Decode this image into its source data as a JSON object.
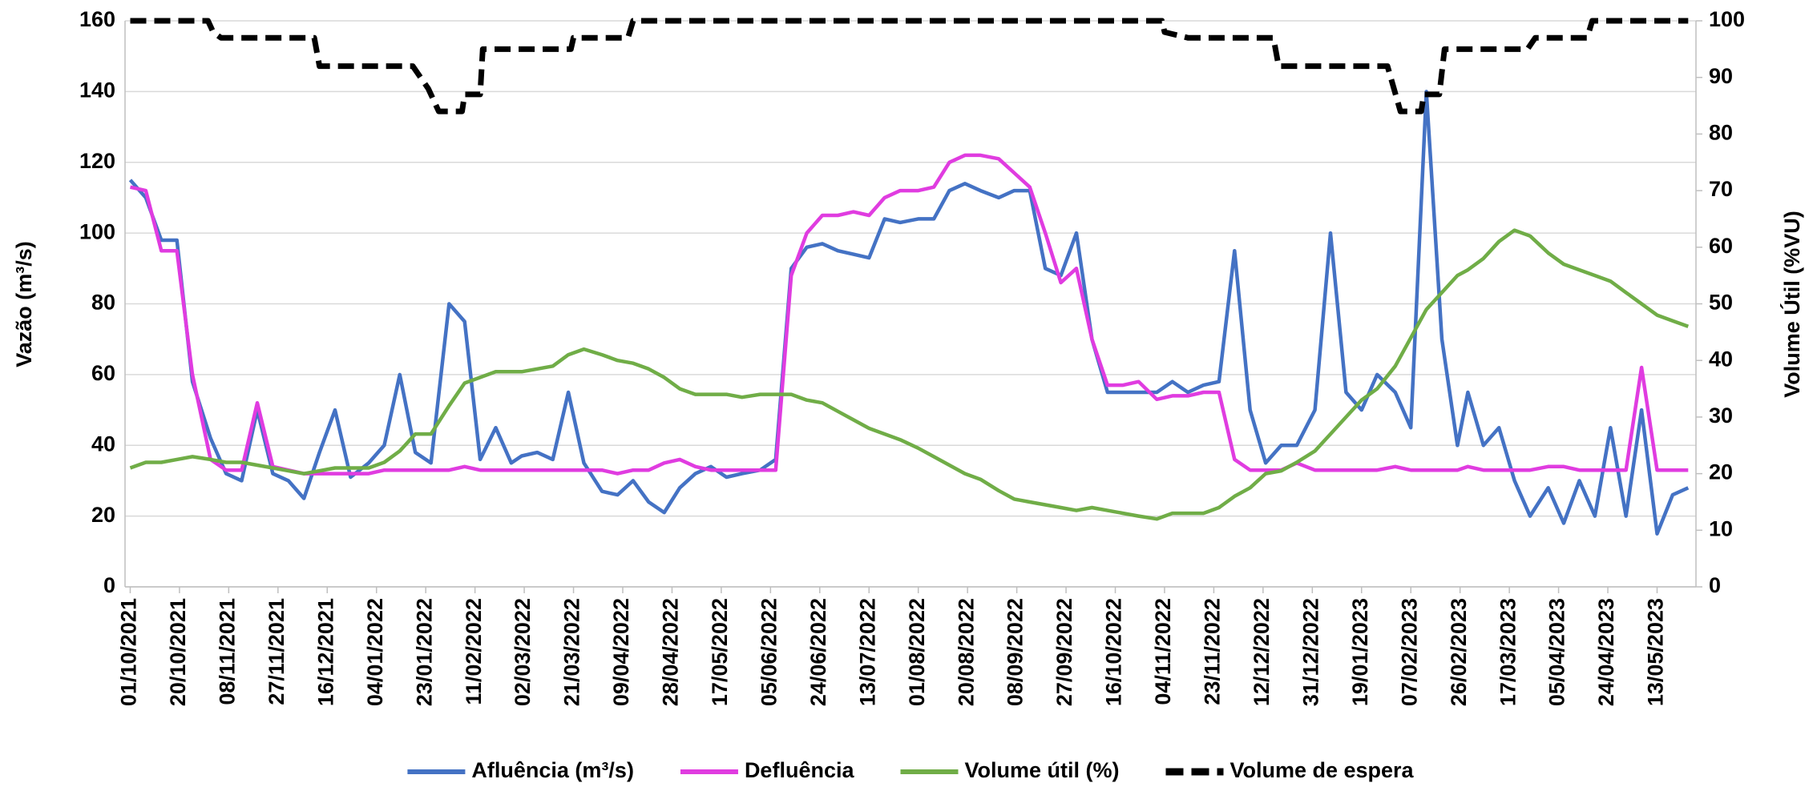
{
  "chart_data": {
    "type": "line",
    "y_label": "Vazão (m³/s)",
    "y2_label": "Volume Útil (%VU)",
    "xlim": [
      "29/09/2021",
      "28/05/2023"
    ],
    "xticks": [
      "01/10/2021",
      "20/10/2021",
      "08/11/2021",
      "27/11/2021",
      "16/12/2021",
      "04/01/2022",
      "23/01/2022",
      "11/02/2022",
      "02/03/2022",
      "21/03/2022",
      "09/04/2022",
      "28/04/2022",
      "17/05/2022",
      "05/06/2022",
      "24/06/2022",
      "13/07/2022",
      "01/08/2022",
      "20/08/2022",
      "08/09/2022",
      "27/09/2022",
      "16/10/2022",
      "04/11/2022",
      "23/11/2022",
      "12/12/2022",
      "31/12/2022",
      "19/01/2023",
      "07/02/2023",
      "26/02/2023",
      "17/03/2023",
      "05/04/2023",
      "24/04/2023",
      "13/05/2023"
    ],
    "ylim": [
      0,
      160
    ],
    "yticks": [
      0,
      20,
      40,
      60,
      80,
      100,
      120,
      140,
      160
    ],
    "y2lim": [
      0,
      100
    ],
    "y2ticks": [
      0,
      10,
      20,
      30,
      40,
      50,
      60,
      70,
      80,
      90,
      100
    ],
    "grid": true,
    "legend": "bottom",
    "x": [
      "01/10/2021",
      "07/10/2021",
      "13/10/2021",
      "19/10/2021",
      "25/10/2021",
      "01/11/2021",
      "07/11/2021",
      "13/11/2021",
      "19/11/2021",
      "25/11/2021",
      "01/12/2021",
      "07/12/2021",
      "13/12/2021",
      "19/12/2021",
      "25/12/2021",
      "01/01/2022",
      "07/01/2022",
      "13/01/2022",
      "19/01/2022",
      "25/01/2022",
      "01/02/2022",
      "07/02/2022",
      "13/02/2022",
      "19/02/2022",
      "25/02/2022",
      "01/03/2022",
      "07/03/2022",
      "13/03/2022",
      "19/03/2022",
      "25/03/2022",
      "01/04/2022",
      "07/04/2022",
      "13/04/2022",
      "19/04/2022",
      "25/04/2022",
      "01/05/2022",
      "07/05/2022",
      "13/05/2022",
      "19/05/2022",
      "25/05/2022",
      "01/06/2022",
      "07/06/2022",
      "13/06/2022",
      "19/06/2022",
      "25/06/2022",
      "01/07/2022",
      "07/07/2022",
      "13/07/2022",
      "19/07/2022",
      "25/07/2022",
      "01/08/2022",
      "07/08/2022",
      "13/08/2022",
      "19/08/2022",
      "25/08/2022",
      "01/09/2022",
      "07/09/2022",
      "13/09/2022",
      "19/09/2022",
      "25/09/2022",
      "01/10/2022",
      "07/10/2022",
      "13/10/2022",
      "19/10/2022",
      "25/10/2022",
      "01/11/2022",
      "07/11/2022",
      "13/11/2022",
      "19/11/2022",
      "25/11/2022",
      "01/12/2022",
      "07/12/2022",
      "13/12/2022",
      "19/12/2022",
      "25/12/2022",
      "01/01/2023",
      "07/01/2023",
      "13/01/2023",
      "19/01/2023",
      "25/01/2023",
      "01/02/2023",
      "07/02/2023",
      "13/02/2023",
      "19/02/2023",
      "25/02/2023",
      "01/03/2023",
      "07/03/2023",
      "13/03/2023",
      "19/03/2023",
      "25/03/2023",
      "01/04/2023",
      "07/04/2023",
      "13/04/2023",
      "19/04/2023",
      "25/04/2023",
      "01/05/2023",
      "07/05/2023",
      "13/05/2023",
      "19/05/2023",
      "25/05/2023"
    ],
    "series": [
      {
        "name": "Afluência (m³/s)",
        "color": "#4472c4",
        "values": [
          115,
          110,
          98,
          98,
          58,
          42,
          32,
          30,
          50,
          32,
          30,
          25,
          38,
          50,
          31,
          35,
          40,
          60,
          38,
          35,
          80,
          75,
          36,
          45,
          35,
          37,
          38,
          36,
          55,
          35,
          27,
          26,
          30,
          24,
          21,
          28,
          32,
          34,
          31,
          32,
          33,
          36,
          90,
          96,
          97,
          95,
          94,
          93,
          104,
          103,
          104,
          104,
          112,
          114,
          112,
          110,
          112,
          112,
          90,
          88,
          100,
          70,
          55,
          55,
          55,
          55,
          58,
          55,
          57,
          58,
          95,
          50,
          35,
          40,
          40,
          50,
          100,
          55,
          50,
          60,
          55,
          45,
          140,
          70,
          40,
          55,
          40,
          45,
          30,
          20,
          28,
          18,
          30,
          20,
          45,
          20,
          50,
          15,
          26,
          28
        ]
      },
      {
        "name": "Defluência",
        "color": "#e03ce0",
        "values": [
          113,
          112,
          95,
          95,
          60,
          36,
          33,
          33,
          52,
          34,
          33,
          32,
          32,
          32,
          32,
          32,
          33,
          33,
          33,
          33,
          33,
          34,
          33,
          33,
          33,
          33,
          33,
          33,
          33,
          33,
          33,
          32,
          33,
          33,
          35,
          36,
          34,
          33,
          33,
          33,
          33,
          33,
          88,
          100,
          105,
          105,
          106,
          105,
          110,
          112,
          112,
          113,
          120,
          122,
          122,
          121,
          117,
          113,
          100,
          86,
          90,
          70,
          57,
          57,
          58,
          53,
          54,
          54,
          55,
          55,
          36,
          33,
          33,
          33,
          35,
          33,
          33,
          33,
          33,
          33,
          34,
          33,
          33,
          33,
          33,
          34,
          33,
          33,
          33,
          33,
          34,
          34,
          33,
          33,
          33,
          33,
          62,
          33,
          33,
          33
        ]
      },
      {
        "name": "Volume útil (%)",
        "color": "#70ad47",
        "axis": "y2",
        "values": [
          21,
          22,
          22,
          22.5,
          23,
          22.5,
          22,
          22,
          21.5,
          21,
          20.5,
          20,
          20.5,
          21,
          21,
          21,
          22,
          24,
          27,
          27,
          32,
          36,
          37,
          38,
          38,
          38,
          38.5,
          39,
          41,
          42,
          41,
          40,
          39.5,
          38.5,
          37,
          35,
          34,
          34,
          34,
          33.5,
          34,
          34,
          34,
          33,
          32.5,
          31,
          29.5,
          28,
          27,
          26,
          24.5,
          23,
          21.5,
          20,
          19,
          17,
          15.5,
          15,
          14.5,
          14,
          13.5,
          14,
          13.5,
          13,
          12.5,
          12,
          13,
          13,
          13,
          14,
          16,
          17.5,
          20,
          20.5,
          22,
          24,
          27,
          30,
          33,
          35,
          39,
          44,
          49,
          52,
          55,
          56,
          58,
          61,
          63,
          62,
          59,
          57,
          56,
          55,
          54,
          52,
          50,
          48,
          47,
          46
        ]
      },
      {
        "name": "Volume de espera",
        "color": "#000000",
        "axis": "y2",
        "dashed": true,
        "x": [
          "01/10/2021",
          "31/10/2021",
          "02/11/2021",
          "05/11/2021",
          "11/12/2021",
          "13/12/2021",
          "18/01/2022",
          "24/01/2022",
          "28/01/2022",
          "06/02/2022",
          "07/02/2022",
          "13/02/2022",
          "14/02/2022",
          "20/03/2022",
          "21/03/2022",
          "11/04/2022",
          "13/04/2022",
          "03/11/2022",
          "04/11/2022",
          "13/11/2022",
          "16/12/2022",
          "18/12/2022",
          "29/01/2023",
          "03/02/2023",
          "11/02/2023",
          "12/02/2023",
          "18/02/2023",
          "20/02/2023",
          "24/03/2023",
          "27/03/2023",
          "16/04/2023",
          "18/04/2023",
          "25/05/2023"
        ],
        "values": [
          100,
          100,
          98,
          97,
          97,
          92,
          92,
          88,
          84,
          84,
          87,
          87,
          95,
          95,
          97,
          97,
          100,
          100,
          98,
          97,
          97,
          92,
          92,
          84,
          84,
          87,
          87,
          95,
          95,
          97,
          97,
          100,
          100
        ]
      }
    ]
  }
}
